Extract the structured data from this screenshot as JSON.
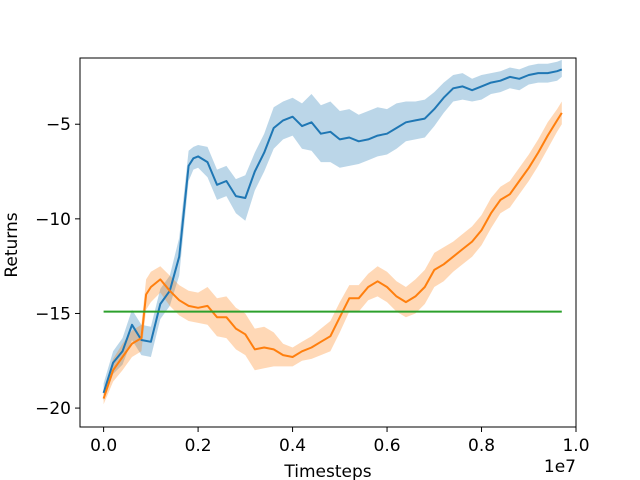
{
  "chart_data": {
    "type": "line",
    "title": "",
    "xlabel": "Timesteps",
    "ylabel": "Returns",
    "x_multiplier_label": "1e7",
    "xlim": [
      -0.05,
      1.0
    ],
    "ylim": [
      -21,
      -1.5
    ],
    "xticks": [
      0.0,
      0.2,
      0.4,
      0.6,
      0.8,
      1.0
    ],
    "xtick_labels": [
      "0.0",
      "0.2",
      "0.4",
      "0.6",
      "0.8",
      "1.0"
    ],
    "yticks": [
      -20,
      -15,
      -10,
      -5
    ],
    "ytick_labels": [
      "−20",
      "−15",
      "−10",
      "−5"
    ],
    "grid": false,
    "legend": "none",
    "series": [
      {
        "color": "#1f77b4",
        "band_color": "#1f77b4",
        "x": [
          0.0,
          0.02,
          0.04,
          0.06,
          0.08,
          0.1,
          0.12,
          0.14,
          0.16,
          0.18,
          0.19,
          0.2,
          0.22,
          0.24,
          0.26,
          0.28,
          0.3,
          0.32,
          0.34,
          0.36,
          0.38,
          0.4,
          0.42,
          0.44,
          0.46,
          0.48,
          0.5,
          0.52,
          0.54,
          0.56,
          0.58,
          0.6,
          0.62,
          0.64,
          0.66,
          0.68,
          0.7,
          0.72,
          0.74,
          0.76,
          0.78,
          0.8,
          0.82,
          0.84,
          0.86,
          0.88,
          0.9,
          0.92,
          0.94,
          0.96,
          0.97
        ],
        "y": [
          -19.2,
          -17.6,
          -17.0,
          -15.6,
          -16.4,
          -16.5,
          -14.5,
          -13.8,
          -12.0,
          -7.2,
          -6.8,
          -6.7,
          -7.0,
          -8.2,
          -8.0,
          -8.8,
          -8.9,
          -7.5,
          -6.5,
          -5.2,
          -4.8,
          -4.6,
          -5.1,
          -4.9,
          -5.5,
          -5.4,
          -5.8,
          -5.7,
          -5.9,
          -5.8,
          -5.6,
          -5.5,
          -5.2,
          -4.9,
          -4.8,
          -4.7,
          -4.2,
          -3.6,
          -3.1,
          -3.0,
          -3.2,
          -3.0,
          -2.8,
          -2.7,
          -2.5,
          -2.6,
          -2.4,
          -2.3,
          -2.3,
          -2.2,
          -2.1
        ],
        "lower": [
          -19.6,
          -18.2,
          -17.7,
          -16.4,
          -17.2,
          -17.3,
          -15.3,
          -14.6,
          -13.0,
          -8.0,
          -7.4,
          -7.3,
          -7.8,
          -9.0,
          -8.8,
          -9.7,
          -10.1,
          -8.5,
          -7.5,
          -6.3,
          -5.8,
          -5.6,
          -6.3,
          -6.4,
          -7.0,
          -7.0,
          -7.3,
          -7.2,
          -7.1,
          -6.9,
          -6.7,
          -6.6,
          -6.3,
          -5.9,
          -5.8,
          -5.7,
          -5.1,
          -4.4,
          -3.8,
          -3.7,
          -3.8,
          -3.7,
          -3.4,
          -3.3,
          -3.1,
          -3.2,
          -2.9,
          -2.8,
          -2.8,
          -2.7,
          -2.5
        ],
        "upper": [
          -18.7,
          -17.0,
          -16.3,
          -14.8,
          -15.6,
          -15.7,
          -13.7,
          -13.0,
          -11.0,
          -6.4,
          -6.2,
          -6.1,
          -6.2,
          -7.4,
          -7.2,
          -7.9,
          -7.7,
          -6.5,
          -5.5,
          -4.1,
          -3.8,
          -3.6,
          -3.9,
          -3.4,
          -4.0,
          -3.8,
          -4.3,
          -4.2,
          -4.5,
          -4.3,
          -4.1,
          -4.2,
          -3.9,
          -3.8,
          -3.8,
          -3.7,
          -3.3,
          -2.8,
          -2.4,
          -2.3,
          -2.6,
          -2.4,
          -2.3,
          -2.2,
          -2.0,
          -2.1,
          -1.9,
          -1.8,
          -1.8,
          -1.7,
          -1.6
        ]
      },
      {
        "color": "#ff7f0e",
        "band_color": "#ff7f0e",
        "x": [
          0.0,
          0.02,
          0.04,
          0.06,
          0.08,
          0.09,
          0.1,
          0.12,
          0.14,
          0.16,
          0.18,
          0.2,
          0.22,
          0.24,
          0.26,
          0.28,
          0.3,
          0.32,
          0.34,
          0.36,
          0.38,
          0.4,
          0.42,
          0.44,
          0.46,
          0.48,
          0.5,
          0.52,
          0.54,
          0.56,
          0.58,
          0.6,
          0.62,
          0.64,
          0.66,
          0.68,
          0.7,
          0.72,
          0.74,
          0.76,
          0.78,
          0.8,
          0.82,
          0.84,
          0.86,
          0.88,
          0.9,
          0.92,
          0.94,
          0.96,
          0.97
        ],
        "y": [
          -19.5,
          -18.0,
          -17.3,
          -16.6,
          -16.3,
          -14.0,
          -13.6,
          -13.2,
          -13.8,
          -14.3,
          -14.6,
          -14.7,
          -14.6,
          -15.2,
          -15.2,
          -15.8,
          -16.1,
          -16.9,
          -16.8,
          -16.9,
          -17.2,
          -17.3,
          -17.0,
          -16.8,
          -16.5,
          -16.2,
          -15.2,
          -14.2,
          -14.2,
          -13.6,
          -13.3,
          -13.6,
          -14.1,
          -14.4,
          -14.1,
          -13.6,
          -12.7,
          -12.4,
          -12.0,
          -11.6,
          -11.2,
          -10.6,
          -9.7,
          -9.0,
          -8.7,
          -8.0,
          -7.3,
          -6.5,
          -5.6,
          -4.8,
          -4.4
        ],
        "lower": [
          -19.8,
          -18.6,
          -18.0,
          -17.3,
          -17.0,
          -14.8,
          -14.4,
          -13.9,
          -14.6,
          -15.1,
          -15.4,
          -15.5,
          -15.6,
          -16.2,
          -16.3,
          -16.9,
          -17.2,
          -18.0,
          -17.9,
          -17.8,
          -17.8,
          -17.8,
          -17.5,
          -17.4,
          -17.2,
          -17.0,
          -16.0,
          -14.9,
          -14.9,
          -14.3,
          -14.1,
          -14.4,
          -14.9,
          -15.2,
          -15.0,
          -14.5,
          -13.6,
          -13.3,
          -12.8,
          -12.4,
          -12.0,
          -11.4,
          -10.5,
          -9.7,
          -9.4,
          -8.7,
          -8.0,
          -7.2,
          -6.3,
          -5.4,
          -5.0
        ],
        "upper": [
          -19.2,
          -17.4,
          -16.6,
          -15.9,
          -15.6,
          -13.2,
          -12.8,
          -12.5,
          -13.0,
          -13.5,
          -13.8,
          -13.9,
          -13.6,
          -14.2,
          -14.1,
          -14.7,
          -15.0,
          -15.8,
          -15.7,
          -16.0,
          -16.6,
          -16.8,
          -16.5,
          -16.2,
          -15.8,
          -15.4,
          -14.4,
          -13.5,
          -13.5,
          -12.9,
          -12.5,
          -12.8,
          -13.3,
          -13.6,
          -13.2,
          -12.7,
          -11.8,
          -11.5,
          -11.2,
          -10.8,
          -10.4,
          -9.8,
          -8.9,
          -8.3,
          -8.0,
          -7.3,
          -6.6,
          -5.8,
          -4.9,
          -4.2,
          -3.8
        ]
      },
      {
        "color": "#2ca02c",
        "x": [
          0.0,
          0.97
        ],
        "y": [
          -14.9,
          -14.9
        ]
      }
    ]
  }
}
